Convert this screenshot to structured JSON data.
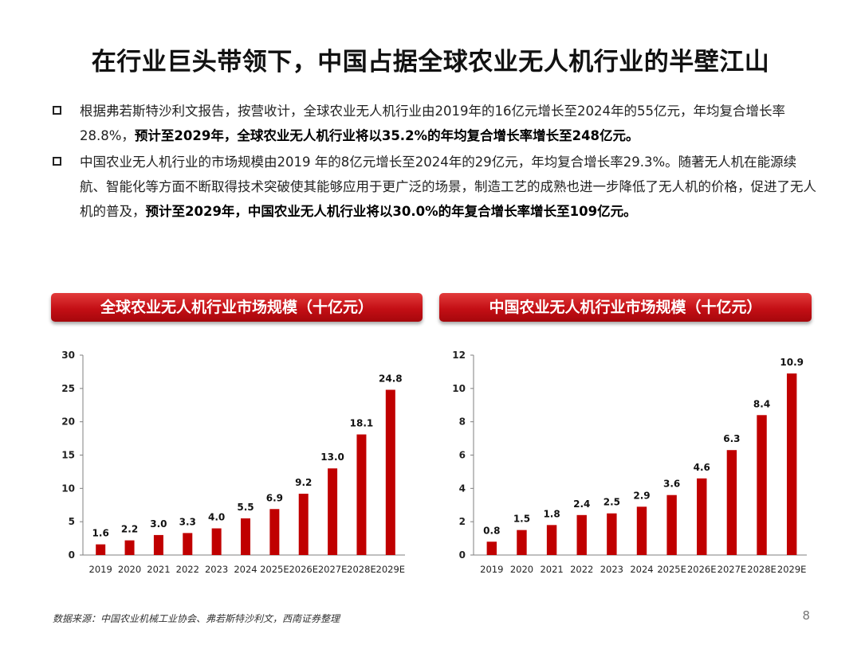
{
  "slide": {
    "title": "在行业巨头带领下，中国占据全球农业无人机行业的半壁江山",
    "bullets": [
      {
        "normal": "根据弗若斯特沙利文报告，按营收计，全球农业无人机行业由2019年的16亿元增长至2024年的55亿元，年均复合增长率28.8%，",
        "bold": "预计至2029年，全球农业无人机行业将以35.2%的年均复合增长率增长至248亿元。"
      },
      {
        "normal": "中国农业无人机行业的市场规模由2019 年的8亿元增长至2024年的29亿元，年均复合增长率29.3%。随著无人机在能源续航、智能化等方面不断取得技术突破使其能够应用于更广泛的场景，制造工艺的成熟也进一步降低了无人机的价格，促进了无人机的普及，",
        "bold": "预计至2029年，中国农业无人机行业将以30.0%的年复合增长率增长至109亿元。"
      }
    ],
    "source_note": "数据来源：中国农业机械工业协会、弗若斯特沙利文，西南证券整理",
    "page_number": "8",
    "bar_color": "#c00000"
  },
  "chart_data": [
    {
      "type": "bar",
      "title": "全球农业无人机行业市场规模（十亿元）",
      "categories": [
        "2019",
        "2020",
        "2021",
        "2022",
        "2023",
        "2024",
        "2025E",
        "2026E",
        "2027E",
        "2028E",
        "2029E"
      ],
      "values": [
        1.6,
        2.2,
        3.0,
        3.3,
        4.0,
        5.5,
        6.9,
        9.2,
        13.0,
        18.1,
        24.8
      ],
      "data_labels": [
        "1.6",
        "2.2",
        "3.0",
        "3.3",
        "4.0",
        "5.5",
        "6.9",
        "9.2",
        "13.0",
        "18.1",
        "24.8"
      ],
      "yticks": [
        0,
        5,
        10,
        15,
        20,
        25,
        30
      ],
      "ylim": [
        0,
        30
      ],
      "xlabel": "",
      "ylabel": "",
      "grid": false,
      "legend": "none"
    },
    {
      "type": "bar",
      "title": "中国农业无人机行业市场规模（十亿元）",
      "categories": [
        "2019",
        "2020",
        "2021",
        "2022",
        "2023",
        "2024",
        "2025E",
        "2026E",
        "2027E",
        "2028E",
        "2029E"
      ],
      "values": [
        0.8,
        1.5,
        1.8,
        2.4,
        2.5,
        2.9,
        3.6,
        4.6,
        6.3,
        8.4,
        10.9
      ],
      "data_labels": [
        "0.8",
        "1.5",
        "1.8",
        "2.4",
        "2.5",
        "2.9",
        "3.6",
        "4.6",
        "6.3",
        "8.4",
        "10.9"
      ],
      "yticks": [
        0,
        2,
        4,
        6,
        8,
        10,
        12
      ],
      "ylim": [
        0,
        12
      ],
      "xlabel": "",
      "ylabel": "",
      "grid": false,
      "legend": "none"
    }
  ]
}
